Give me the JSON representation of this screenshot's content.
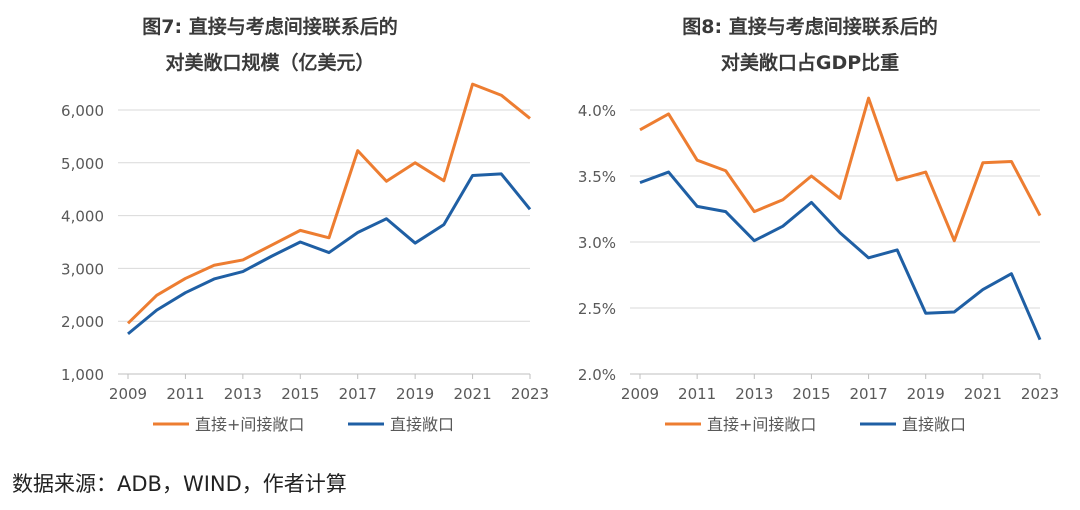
{
  "chart_data": [
    {
      "type": "line",
      "title": "图7: 直接与考虑间接联系后的对美敞口规模（亿美元）",
      "title_lines": [
        "图7: 直接与考虑间接联系后的",
        "对美敞口规模（亿美元）"
      ],
      "x": [
        2009,
        2010,
        2011,
        2012,
        2013,
        2014,
        2015,
        2016,
        2017,
        2018,
        2019,
        2020,
        2021,
        2022,
        2023
      ],
      "x_tick_labels": [
        "2009",
        "2011",
        "2013",
        "2015",
        "2017",
        "2019",
        "2021",
        "2023"
      ],
      "ylim": [
        1000,
        6500
      ],
      "y_ticks": [
        1000,
        2000,
        3000,
        4000,
        5000,
        6000
      ],
      "y_tick_labels": [
        "1,000",
        "2,000",
        "3,000",
        "4,000",
        "5,000",
        "6,000"
      ],
      "grid": true,
      "legend_position": "bottom",
      "series": [
        {
          "name": "直接+间接敞口",
          "color": "#ED7D31",
          "values": [
            1960,
            2490,
            2810,
            3060,
            3160,
            3440,
            3720,
            3580,
            5230,
            4650,
            5000,
            4660,
            6490,
            6280,
            5840
          ]
        },
        {
          "name": "直接敞口",
          "color": "#1F5FA4",
          "values": [
            1760,
            2210,
            2540,
            2800,
            2940,
            3230,
            3500,
            3300,
            3680,
            3940,
            3480,
            3830,
            4760,
            4790,
            4120
          ]
        }
      ]
    },
    {
      "type": "line",
      "title": "图8: 直接与考虑间接联系后的对美敞口占GDP比重",
      "title_lines": [
        "图8: 直接与考虑间接联系后的",
        "对美敞口占GDP比重"
      ],
      "x": [
        2009,
        2010,
        2011,
        2012,
        2013,
        2014,
        2015,
        2016,
        2017,
        2018,
        2019,
        2020,
        2021,
        2022,
        2023
      ],
      "x_tick_labels": [
        "2009",
        "2011",
        "2013",
        "2015",
        "2017",
        "2019",
        "2021",
        "2023"
      ],
      "ylim": [
        2.0,
        4.2
      ],
      "y_ticks": [
        2.0,
        2.5,
        3.0,
        3.5,
        4.0
      ],
      "y_tick_labels": [
        "2.0%",
        "2.5%",
        "3.0%",
        "3.5%",
        "4.0%"
      ],
      "grid": true,
      "legend_position": "bottom",
      "series": [
        {
          "name": "直接+间接敞口",
          "color": "#ED7D31",
          "values": [
            3.85,
            3.97,
            3.62,
            3.54,
            3.23,
            3.32,
            3.5,
            3.33,
            4.09,
            3.47,
            3.53,
            3.01,
            3.6,
            3.61,
            3.2
          ]
        },
        {
          "name": "直接敞口",
          "color": "#1F5FA4",
          "values": [
            3.45,
            3.53,
            3.27,
            3.23,
            3.01,
            3.12,
            3.3,
            3.07,
            2.88,
            2.94,
            2.46,
            2.47,
            2.64,
            2.76,
            2.26
          ]
        }
      ]
    }
  ],
  "footer": "数据来源：ADB，WIND，作者计算"
}
